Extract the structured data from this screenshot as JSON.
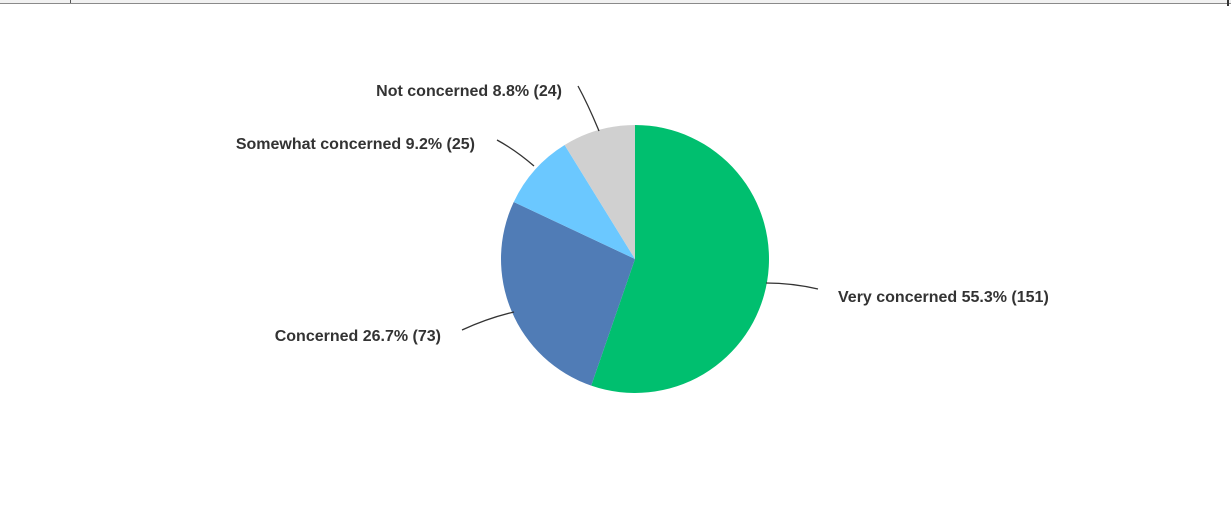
{
  "chart_data": {
    "type": "pie",
    "slices": [
      {
        "label": "Very concerned",
        "percent": 55.3,
        "count": 151,
        "color": "#00bf6f",
        "text": "Very concerned 55.3% (151)"
      },
      {
        "label": "Concerned",
        "percent": 26.7,
        "count": 73,
        "color": "#507cb6",
        "text": "Concerned 26.7% (73)"
      },
      {
        "label": "Somewhat concerned",
        "percent": 9.2,
        "count": 25,
        "color": "#6bc8ff",
        "text": "Somewhat concerned 9.2% (25)"
      },
      {
        "label": "Not concerned",
        "percent": 8.8,
        "count": 24,
        "color": "#d0d0d0",
        "text": "Not concerned 8.8% (24)"
      }
    ],
    "start": "12 o'clock",
    "direction": "clockwise",
    "legend": "none"
  }
}
